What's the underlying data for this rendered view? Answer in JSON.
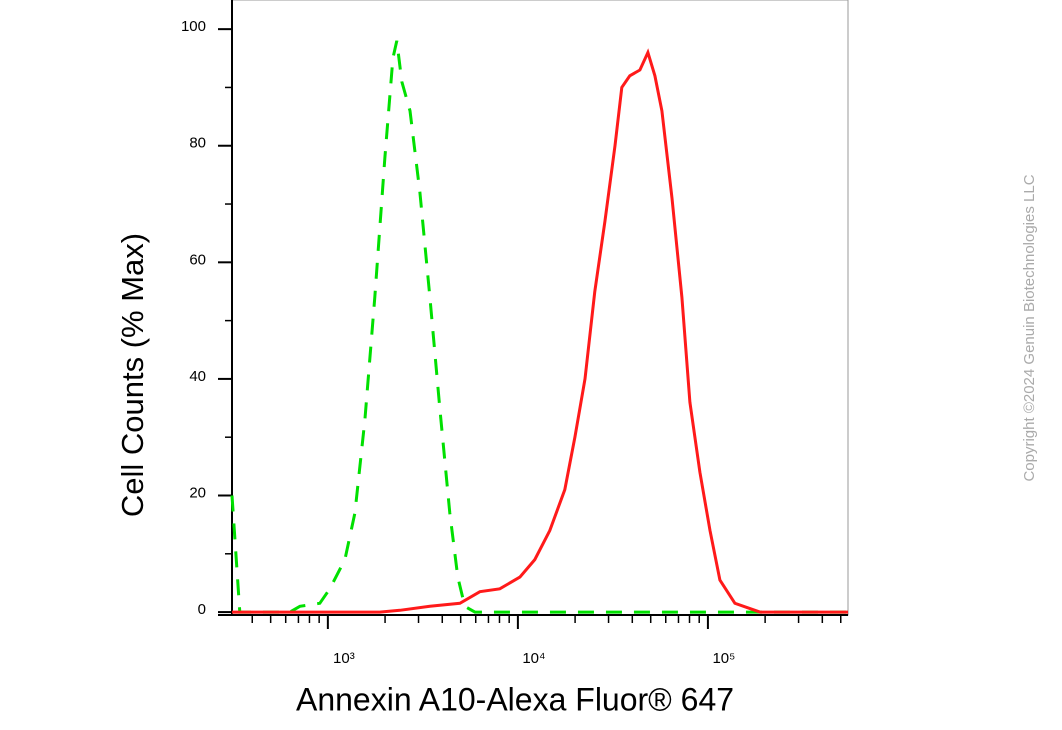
{
  "chart_data": {
    "type": "line",
    "x_label": "Annexin A10-Alexa Fluor® 647",
    "y_label": "Cell Counts (% Max)",
    "watermark": "Copyright ©2024 Genuin Biotechnologies LLC",
    "xscale": "log",
    "xlim": [
      313,
      546000
    ],
    "ylim": [
      -0.5,
      105
    ],
    "xticks": [
      {
        "value": 1000,
        "label": "10³"
      },
      {
        "value": 10000,
        "label": "10⁴"
      },
      {
        "value": 100000,
        "label": "10⁵"
      }
    ],
    "yticks": [
      0,
      20,
      40,
      60,
      80,
      100
    ],
    "series": [
      {
        "color": "#00e000",
        "dashed": true,
        "x": [
          313,
          344,
          631,
          713,
          907,
          1024,
          1229,
          1387,
          1567,
          1766,
          1995,
          2198,
          2306,
          2449,
          2704,
          3049,
          3442,
          3882,
          4383,
          4831,
          5257,
          5940,
          546000
        ],
        "values": [
          20,
          0,
          0,
          1,
          1.5,
          4,
          9,
          17,
          33,
          54,
          78,
          95,
          98,
          91,
          86,
          72,
          54,
          35,
          17,
          6,
          1,
          0,
          0
        ]
      },
      {
        "color": "#ff1a1a",
        "dashed": false,
        "x": [
          313,
          1879,
          2393,
          3442,
          4955,
          6310,
          8035,
          10250,
          12280,
          14720,
          17660,
          19950,
          22540,
          25410,
          28710,
          32430,
          35240,
          38820,
          43850,
          48310,
          52600,
          57280,
          64710,
          72950,
          80350,
          90780,
          102500,
          115600,
          138700,
          187900,
          546000
        ],
        "values": [
          0,
          0,
          0.3,
          1,
          1.5,
          3.5,
          4,
          6,
          9,
          14,
          21,
          30,
          40,
          55,
          67,
          80,
          90,
          92,
          93,
          96,
          92,
          86,
          71,
          54,
          36,
          24,
          14,
          5.5,
          1.5,
          0,
          0
        ]
      }
    ]
  }
}
